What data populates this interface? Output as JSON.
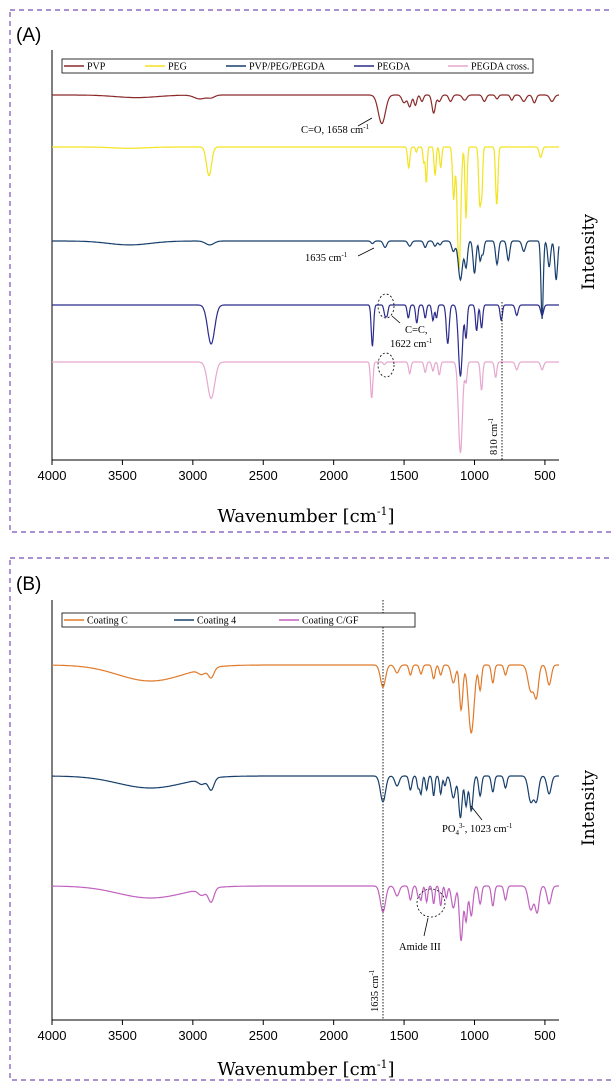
{
  "panels": [
    {
      "label": "(A)",
      "xlabel": "Wavenumber [cm",
      "xlabel_sup": "-1",
      "xlabel_end": "]",
      "ylabel": "Intensity",
      "annotations": {
        "co": "C=O, 1658 cm",
        "co_sup": "-1",
        "n1635": "1635 cm",
        "n1635_sup": "-1",
        "cc1": "C=C,",
        "cc2": "1622 cm",
        "cc2_sup": "-1",
        "n810": "810 cm",
        "n810_sup": "-1"
      }
    },
    {
      "label": "(B)",
      "xlabel": "Wavenumber [cm",
      "xlabel_sup": "-1",
      "xlabel_end": "]",
      "ylabel": "Intensity",
      "annotations": {
        "po4": "PO",
        "po4_sub": "4",
        "po4_sup": "3-",
        "po4_rest": ", 1023 cm",
        "po4_rest_sup": "-1",
        "amide": "Amide III",
        "n1635": "1635 cm",
        "n1635_sup": "-1"
      }
    }
  ],
  "chart_data": [
    {
      "type": "line",
      "title": "",
      "xlabel": "Wavenumber [cm-1]",
      "ylabel": "Intensity",
      "xlim": [
        4000,
        400
      ],
      "x_ticks": [
        4000,
        3500,
        3000,
        2500,
        2000,
        1500,
        1000,
        500
      ],
      "x_reversed": true,
      "y_ticks_shown": false,
      "legend_position": "top",
      "series": [
        {
          "name": "PVP",
          "color": "#8b2a2a",
          "offset": 0,
          "baseline": [
            [
              4000,
              0
            ],
            [
              3600,
              -2
            ],
            [
              3400,
              -3
            ],
            [
              3000,
              -2
            ],
            [
              2950,
              -4
            ],
            [
              2900,
              -3
            ],
            [
              2000,
              -1
            ],
            [
              1800,
              -2
            ]
          ],
          "peaks": [
            [
              3400,
              2,
              150
            ],
            [
              2950,
              3,
              40
            ],
            [
              2870,
              2,
              25
            ],
            [
              1658,
              22,
              25
            ],
            [
              1500,
              6,
              15
            ],
            [
              1460,
              9,
              12
            ],
            [
              1420,
              8,
              10
            ],
            [
              1373,
              5,
              10
            ],
            [
              1290,
              14,
              12
            ],
            [
              1250,
              5,
              12
            ],
            [
              1170,
              5,
              12
            ],
            [
              1070,
              4,
              15
            ],
            [
              930,
              5,
              12
            ],
            [
              840,
              3,
              10
            ],
            [
              735,
              4,
              10
            ],
            [
              650,
              5,
              15
            ],
            [
              575,
              6,
              12
            ],
            [
              450,
              5,
              15
            ]
          ]
        },
        {
          "name": "PEG",
          "color": "#f2e41e",
          "offset": 1,
          "baseline": [],
          "peaks": [
            [
              3450,
              1,
              120
            ],
            [
              2885,
              22,
              18
            ],
            [
              1467,
              16,
              8
            ],
            [
              1413,
              4,
              6
            ],
            [
              1360,
              12,
              6
            ],
            [
              1342,
              28,
              6
            ],
            [
              1280,
              22,
              7
            ],
            [
              1240,
              16,
              7
            ],
            [
              1148,
              40,
              8
            ],
            [
              1110,
              95,
              12
            ],
            [
              1060,
              55,
              7
            ],
            [
              962,
              45,
              8
            ],
            [
              947,
              30,
              6
            ],
            [
              842,
              45,
              8
            ],
            [
              530,
              8,
              10
            ]
          ]
        },
        {
          "name": "PVP/PEG/PEGDA",
          "color": "#183f6b",
          "offset": 2,
          "baseline": [],
          "peaks": [
            [
              3450,
              3,
              150
            ],
            [
              2880,
              3,
              30
            ],
            [
              1725,
              2,
              10
            ],
            [
              1635,
              5,
              12
            ],
            [
              1460,
              4,
              12
            ],
            [
              1350,
              5,
              10
            ],
            [
              1280,
              4,
              10
            ],
            [
              1245,
              3,
              10
            ],
            [
              1150,
              8,
              12
            ],
            [
              1100,
              30,
              15
            ],
            [
              1060,
              20,
              10
            ],
            [
              1000,
              25,
              10
            ],
            [
              960,
              15,
              8
            ],
            [
              940,
              10,
              8
            ],
            [
              840,
              18,
              10
            ],
            [
              760,
              15,
              10
            ],
            [
              650,
              8,
              12
            ],
            [
              520,
              60,
              8
            ],
            [
              470,
              20,
              10
            ],
            [
              420,
              30,
              10
            ]
          ]
        },
        {
          "name": "PEGDA",
          "color": "#2b2b8c",
          "offset": 3,
          "baseline": [],
          "peaks": [
            [
              2870,
              30,
              25
            ],
            [
              1725,
              32,
              8
            ],
            [
              1635,
              8,
              8
            ],
            [
              1620,
              7,
              7
            ],
            [
              1470,
              10,
              8
            ],
            [
              1410,
              14,
              8
            ],
            [
              1350,
              10,
              8
            ],
            [
              1295,
              12,
              8
            ],
            [
              1270,
              10,
              7
            ],
            [
              1190,
              30,
              10
            ],
            [
              1100,
              55,
              14
            ],
            [
              1060,
              25,
              8
            ],
            [
              985,
              20,
              8
            ],
            [
              950,
              18,
              8
            ],
            [
              810,
              12,
              8
            ],
            [
              700,
              8,
              10
            ],
            [
              520,
              8,
              10
            ]
          ]
        },
        {
          "name": "PEGDA cross.",
          "color": "#e6a8cf",
          "offset": 4,
          "baseline": [],
          "peaks": [
            [
              2870,
              28,
              25
            ],
            [
              1730,
              28,
              8
            ],
            [
              1640,
              2,
              8
            ],
            [
              1460,
              9,
              8
            ],
            [
              1350,
              8,
              8
            ],
            [
              1295,
              7,
              8
            ],
            [
              1250,
              10,
              8
            ],
            [
              1100,
              70,
              14
            ],
            [
              1060,
              15,
              8
            ],
            [
              950,
              22,
              8
            ],
            [
              850,
              12,
              8
            ],
            [
              700,
              6,
              10
            ],
            [
              520,
              6,
              10
            ]
          ]
        }
      ]
    },
    {
      "type": "line",
      "title": "",
      "xlabel": "Wavenumber [cm-1]",
      "ylabel": "Intensity",
      "xlim": [
        4000,
        400
      ],
      "x_ticks": [
        4000,
        3500,
        3000,
        2500,
        2000,
        1500,
        1000,
        500
      ],
      "x_reversed": true,
      "y_ticks_shown": false,
      "legend_position": "top",
      "series": [
        {
          "name": "Coating C",
          "color": "#e07a2a",
          "offset": 0,
          "baseline": [],
          "peaks": [
            [
              3300,
              16,
              230
            ],
            [
              2935,
              5,
              25
            ],
            [
              2870,
              10,
              20
            ],
            [
              1650,
              22,
              18
            ],
            [
              1550,
              8,
              15
            ],
            [
              1455,
              10,
              10
            ],
            [
              1380,
              9,
              10
            ],
            [
              1290,
              14,
              10
            ],
            [
              1240,
              10,
              10
            ],
            [
              1150,
              18,
              15
            ],
            [
              1095,
              45,
              12
            ],
            [
              1023,
              68,
              20
            ],
            [
              960,
              25,
              10
            ],
            [
              870,
              18,
              10
            ],
            [
              780,
              10,
              10
            ],
            [
              600,
              26,
              20
            ],
            [
              560,
              30,
              15
            ],
            [
              470,
              20,
              15
            ]
          ]
        },
        {
          "name": "Coating 4",
          "color": "#183f6b",
          "offset": 1,
          "baseline": [],
          "peaks": [
            [
              3300,
              12,
              230
            ],
            [
              2935,
              5,
              25
            ],
            [
              2870,
              12,
              20
            ],
            [
              1650,
              26,
              18
            ],
            [
              1550,
              10,
              15
            ],
            [
              1455,
              14,
              10
            ],
            [
              1400,
              12,
              8
            ],
            [
              1380,
              18,
              8
            ],
            [
              1340,
              14,
              8
            ],
            [
              1290,
              20,
              8
            ],
            [
              1240,
              18,
              8
            ],
            [
              1210,
              10,
              8
            ],
            [
              1150,
              22,
              15
            ],
            [
              1100,
              42,
              12
            ],
            [
              1060,
              30,
              10
            ],
            [
              1023,
              35,
              12
            ],
            [
              960,
              20,
              10
            ],
            [
              870,
              16,
              10
            ],
            [
              780,
              12,
              10
            ],
            [
              600,
              26,
              18
            ],
            [
              560,
              24,
              15
            ],
            [
              470,
              18,
              15
            ]
          ]
        },
        {
          "name": "Coating C/GF",
          "color": "#c061bf",
          "offset": 2,
          "baseline": [],
          "peaks": [
            [
              3300,
              12,
              230
            ],
            [
              2935,
              6,
              25
            ],
            [
              2870,
              14,
              20
            ],
            [
              1650,
              26,
              18
            ],
            [
              1550,
              10,
              15
            ],
            [
              1455,
              14,
              10
            ],
            [
              1400,
              10,
              8
            ],
            [
              1380,
              14,
              8
            ],
            [
              1340,
              16,
              8
            ],
            [
              1290,
              18,
              8
            ],
            [
              1240,
              20,
              8
            ],
            [
              1200,
              12,
              8
            ],
            [
              1150,
              22,
              14
            ],
            [
              1095,
              55,
              12
            ],
            [
              1060,
              35,
              10
            ],
            [
              1023,
              30,
              12
            ],
            [
              960,
              18,
              10
            ],
            [
              870,
              20,
              10
            ],
            [
              780,
              14,
              10
            ],
            [
              600,
              24,
              18
            ],
            [
              555,
              26,
              14
            ],
            [
              470,
              18,
              15
            ]
          ]
        }
      ]
    }
  ]
}
